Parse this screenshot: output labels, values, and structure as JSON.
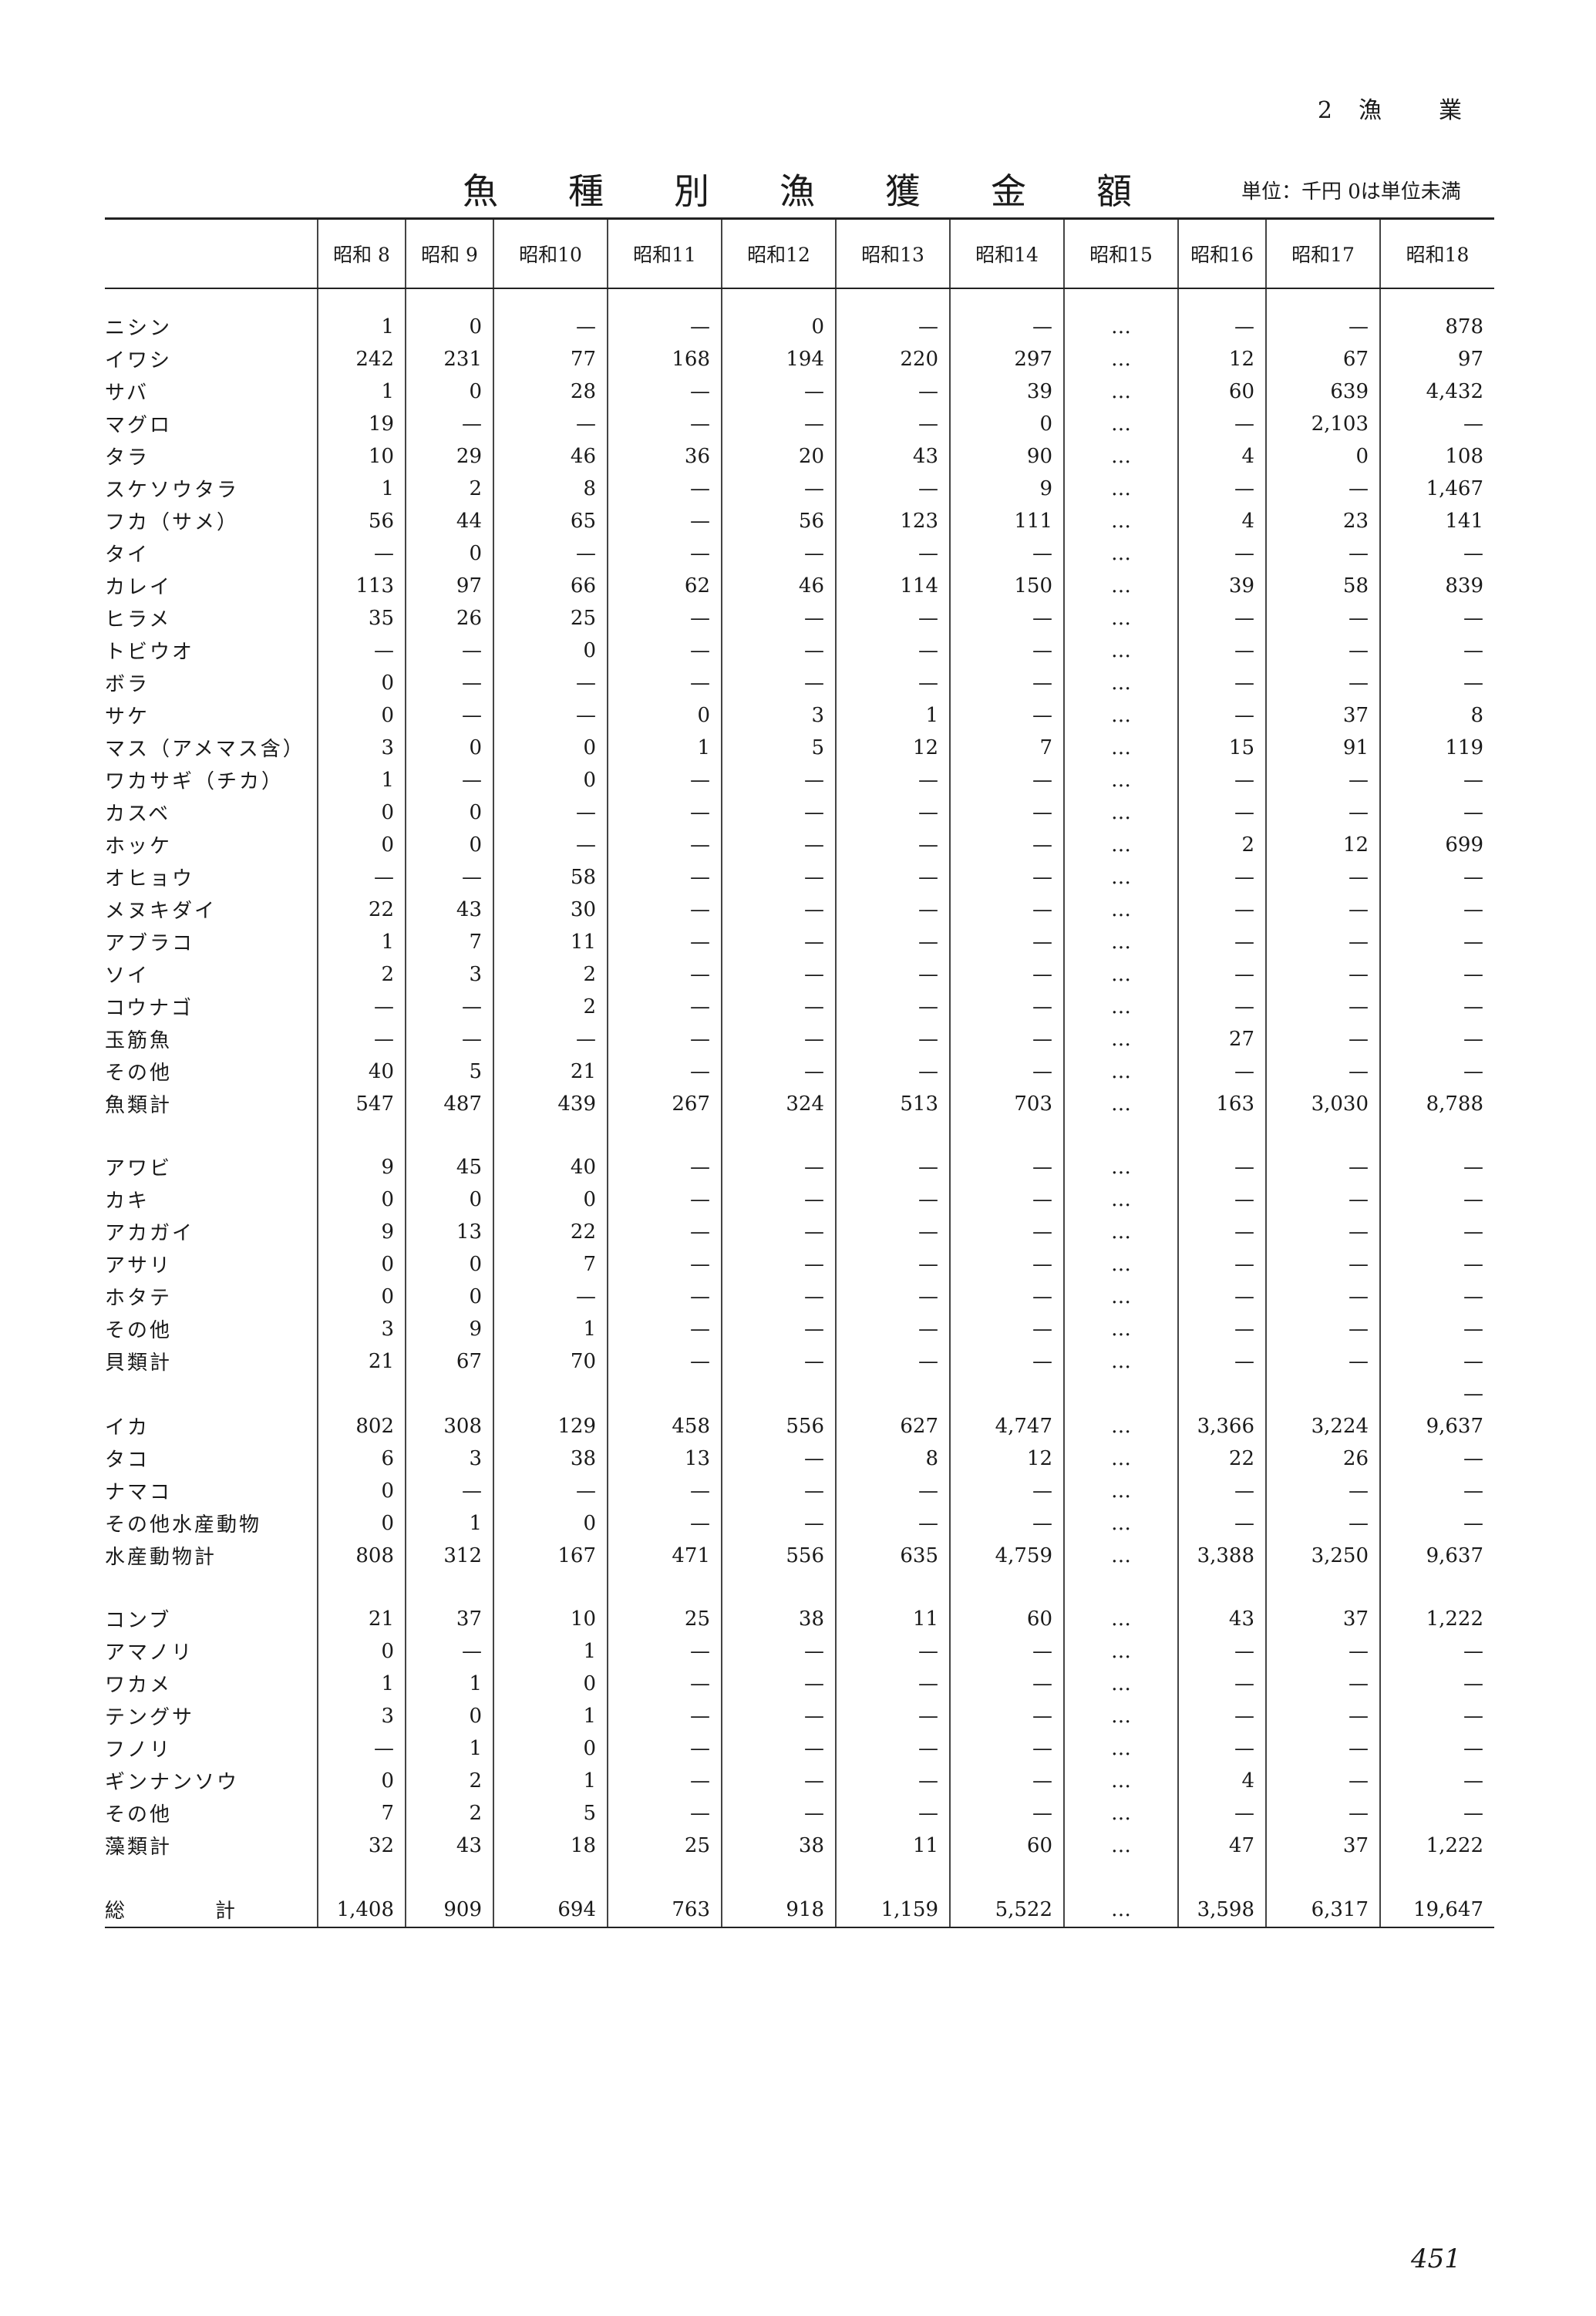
{
  "header": {
    "chapter_num": "2",
    "chapter_chars": [
      "漁",
      "業"
    ]
  },
  "title_chars": [
    "魚",
    "種",
    "別",
    "漁",
    "獲",
    "金",
    "額"
  ],
  "unit": "単位：千円 0は単位未満",
  "columns": [
    "昭和 8",
    "昭和 9",
    "昭和10",
    "昭和11",
    "昭和12",
    "昭和13",
    "昭和14",
    "昭和15",
    "昭和16",
    "昭和17",
    "昭和18"
  ],
  "rows": [
    {
      "label": "ニシン",
      "v": [
        "1",
        "0",
        "—",
        "—",
        "0",
        "—",
        "—",
        "…",
        "—",
        "—",
        "878"
      ]
    },
    {
      "label": "イワシ",
      "v": [
        "242",
        "231",
        "77",
        "168",
        "194",
        "220",
        "297",
        "…",
        "12",
        "67",
        "97"
      ]
    },
    {
      "label": "サバ",
      "v": [
        "1",
        "0",
        "28",
        "—",
        "—",
        "—",
        "39",
        "…",
        "60",
        "639",
        "4,432"
      ]
    },
    {
      "label": "マグロ",
      "v": [
        "19",
        "—",
        "—",
        "—",
        "—",
        "—",
        "0",
        "…",
        "—",
        "2,103",
        "—"
      ]
    },
    {
      "label": "タラ",
      "v": [
        "10",
        "29",
        "46",
        "36",
        "20",
        "43",
        "90",
        "…",
        "4",
        "0",
        "108"
      ]
    },
    {
      "label": "スケソウタラ",
      "v": [
        "1",
        "2",
        "8",
        "—",
        "—",
        "—",
        "9",
        "…",
        "—",
        "—",
        "1,467"
      ]
    },
    {
      "label": "フカ（サメ）",
      "v": [
        "56",
        "44",
        "65",
        "—",
        "56",
        "123",
        "111",
        "…",
        "4",
        "23",
        "141"
      ]
    },
    {
      "label": "タイ",
      "v": [
        "—",
        "0",
        "—",
        "—",
        "—",
        "—",
        "—",
        "…",
        "—",
        "—",
        "—"
      ]
    },
    {
      "label": "カレイ",
      "v": [
        "113",
        "97",
        "66",
        "62",
        "46",
        "114",
        "150",
        "…",
        "39",
        "58",
        "839"
      ]
    },
    {
      "label": "ヒラメ",
      "v": [
        "35",
        "26",
        "25",
        "—",
        "—",
        "—",
        "—",
        "…",
        "—",
        "—",
        "—"
      ]
    },
    {
      "label": "トビウオ",
      "v": [
        "—",
        "—",
        "0",
        "—",
        "—",
        "—",
        "—",
        "…",
        "—",
        "—",
        "—"
      ]
    },
    {
      "label": "ボラ",
      "v": [
        "0",
        "—",
        "—",
        "—",
        "—",
        "—",
        "—",
        "…",
        "—",
        "—",
        "—"
      ]
    },
    {
      "label": "サケ",
      "v": [
        "0",
        "—",
        "—",
        "0",
        "3",
        "1",
        "—",
        "…",
        "—",
        "37",
        "8"
      ]
    },
    {
      "label": "マス（アメマス含）",
      "v": [
        "3",
        "0",
        "0",
        "1",
        "5",
        "12",
        "7",
        "…",
        "15",
        "91",
        "119"
      ]
    },
    {
      "label": "ワカサギ（チカ）",
      "v": [
        "1",
        "—",
        "0",
        "—",
        "—",
        "—",
        "—",
        "…",
        "—",
        "—",
        "—"
      ]
    },
    {
      "label": "カスベ",
      "v": [
        "0",
        "0",
        "—",
        "—",
        "—",
        "—",
        "—",
        "…",
        "—",
        "—",
        "—"
      ]
    },
    {
      "label": "ホッケ",
      "v": [
        "0",
        "0",
        "—",
        "—",
        "—",
        "—",
        "—",
        "…",
        "2",
        "12",
        "699"
      ]
    },
    {
      "label": "オヒョウ",
      "v": [
        "—",
        "—",
        "58",
        "—",
        "—",
        "—",
        "—",
        "…",
        "—",
        "—",
        "—"
      ]
    },
    {
      "label": "メヌキダイ",
      "v": [
        "22",
        "43",
        "30",
        "—",
        "—",
        "—",
        "—",
        "…",
        "—",
        "—",
        "—"
      ]
    },
    {
      "label": "アブラコ",
      "v": [
        "1",
        "7",
        "11",
        "—",
        "—",
        "—",
        "—",
        "…",
        "—",
        "—",
        "—"
      ]
    },
    {
      "label": "ソイ",
      "v": [
        "2",
        "3",
        "2",
        "—",
        "—",
        "—",
        "—",
        "…",
        "—",
        "—",
        "—"
      ]
    },
    {
      "label": "コウナゴ",
      "v": [
        "—",
        "—",
        "2",
        "—",
        "—",
        "—",
        "—",
        "…",
        "—",
        "—",
        "—"
      ]
    },
    {
      "label": "玉筋魚",
      "v": [
        "—",
        "—",
        "—",
        "—",
        "—",
        "—",
        "—",
        "…",
        "27",
        "—",
        "—"
      ]
    },
    {
      "label": "その他",
      "v": [
        "40",
        "5",
        "21",
        "—",
        "—",
        "—",
        "—",
        "…",
        "—",
        "—",
        "—"
      ]
    },
    {
      "label": "魚類計",
      "v": [
        "547",
        "487",
        "439",
        "267",
        "324",
        "513",
        "703",
        "…",
        "163",
        "3,030",
        "8,788"
      ]
    },
    {
      "gap": true
    },
    {
      "label": "アワビ",
      "v": [
        "9",
        "45",
        "40",
        "—",
        "—",
        "—",
        "—",
        "…",
        "—",
        "—",
        "—"
      ]
    },
    {
      "label": "カキ",
      "v": [
        "0",
        "0",
        "0",
        "—",
        "—",
        "—",
        "—",
        "…",
        "—",
        "—",
        "—"
      ]
    },
    {
      "label": "アカガイ",
      "v": [
        "9",
        "13",
        "22",
        "—",
        "—",
        "—",
        "—",
        "…",
        "—",
        "—",
        "—"
      ]
    },
    {
      "label": "アサリ",
      "v": [
        "0",
        "0",
        "7",
        "—",
        "—",
        "—",
        "—",
        "…",
        "—",
        "—",
        "—"
      ]
    },
    {
      "label": "ホタテ",
      "v": [
        "0",
        "0",
        "—",
        "—",
        "—",
        "—",
        "—",
        "…",
        "—",
        "—",
        "—"
      ]
    },
    {
      "label": "その他",
      "v": [
        "3",
        "9",
        "1",
        "—",
        "—",
        "—",
        "—",
        "…",
        "—",
        "—",
        "—"
      ]
    },
    {
      "label": "貝類計",
      "v": [
        "21",
        "67",
        "70",
        "—",
        "—",
        "—",
        "—",
        "…",
        "—",
        "—",
        "—"
      ]
    },
    {
      "label": "",
      "v": [
        "",
        "",
        "",
        "",
        "",
        "",
        "",
        "",
        "",
        "",
        "—"
      ]
    },
    {
      "label": "イカ",
      "v": [
        "802",
        "308",
        "129",
        "458",
        "556",
        "627",
        "4,747",
        "…",
        "3,366",
        "3,224",
        "9,637"
      ]
    },
    {
      "label": "タコ",
      "v": [
        "6",
        "3",
        "38",
        "13",
        "—",
        "8",
        "12",
        "…",
        "22",
        "26",
        "—"
      ]
    },
    {
      "label": "ナマコ",
      "v": [
        "0",
        "—",
        "—",
        "—",
        "—",
        "—",
        "—",
        "…",
        "—",
        "—",
        "—"
      ]
    },
    {
      "label": "その他水産動物",
      "v": [
        "0",
        "1",
        "0",
        "—",
        "—",
        "—",
        "—",
        "…",
        "—",
        "—",
        "—"
      ]
    },
    {
      "label": "水産動物計",
      "v": [
        "808",
        "312",
        "167",
        "471",
        "556",
        "635",
        "4,759",
        "…",
        "3,388",
        "3,250",
        "9,637"
      ]
    },
    {
      "gap": true
    },
    {
      "label": "コンブ",
      "v": [
        "21",
        "37",
        "10",
        "25",
        "38",
        "11",
        "60",
        "…",
        "43",
        "37",
        "1,222"
      ]
    },
    {
      "label": "アマノリ",
      "v": [
        "0",
        "—",
        "1",
        "—",
        "—",
        "—",
        "—",
        "…",
        "—",
        "—",
        "—"
      ]
    },
    {
      "label": "ワカメ",
      "v": [
        "1",
        "1",
        "0",
        "—",
        "—",
        "—",
        "—",
        "…",
        "—",
        "—",
        "—"
      ]
    },
    {
      "label": "テングサ",
      "v": [
        "3",
        "0",
        "1",
        "—",
        "—",
        "—",
        "—",
        "…",
        "—",
        "—",
        "—"
      ]
    },
    {
      "label": "フノリ",
      "v": [
        "—",
        "1",
        "0",
        "—",
        "—",
        "—",
        "—",
        "…",
        "—",
        "—",
        "—"
      ]
    },
    {
      "label": "ギンナンソウ",
      "v": [
        "0",
        "2",
        "1",
        "—",
        "—",
        "—",
        "—",
        "…",
        "4",
        "—",
        "—"
      ]
    },
    {
      "label": "その他",
      "v": [
        "7",
        "2",
        "5",
        "—",
        "—",
        "—",
        "—",
        "…",
        "—",
        "—",
        "—"
      ]
    },
    {
      "label": "藻類計",
      "v": [
        "32",
        "43",
        "18",
        "25",
        "38",
        "11",
        "60",
        "…",
        "47",
        "37",
        "1,222"
      ]
    },
    {
      "gap": true
    },
    {
      "label_parts": [
        "総",
        "計"
      ],
      "total": true,
      "v": [
        "1,408",
        "909",
        "694",
        "763",
        "918",
        "1,159",
        "5,522",
        "…",
        "3,598",
        "6,317",
        "19,647"
      ]
    }
  ],
  "page_number": "451"
}
